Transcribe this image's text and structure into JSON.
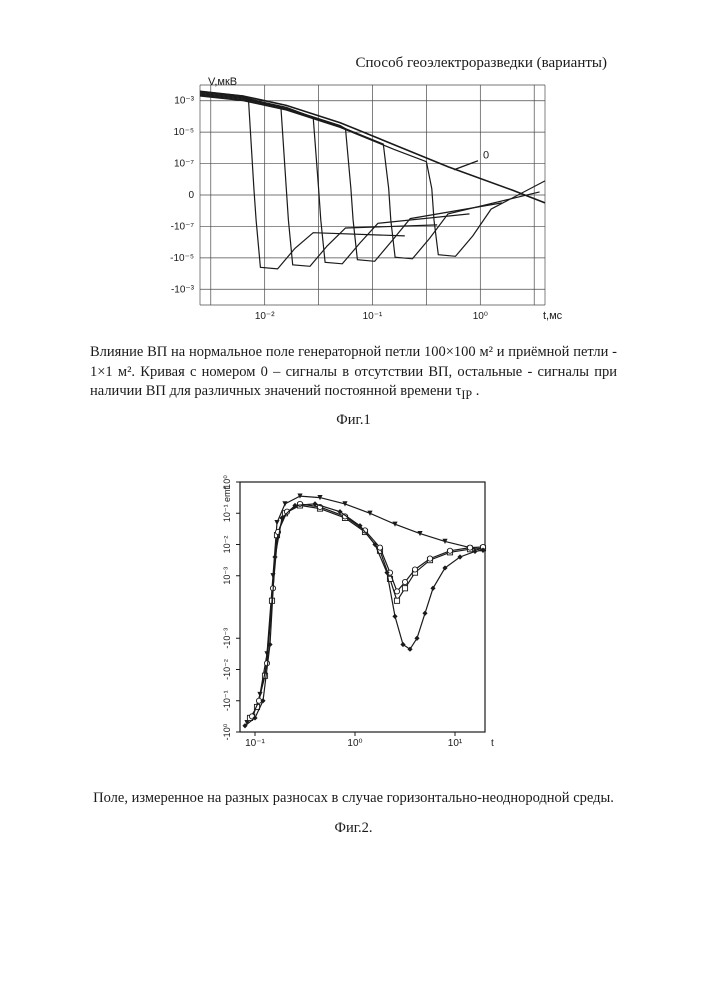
{
  "header": {
    "title": "Способ геоэлектроразведки (варианты)"
  },
  "fig1": {
    "type": "line",
    "ylabel": "V,мкВ",
    "xlabel": "t,мс",
    "annotation_0": "0",
    "y_ticks": [
      "10⁻³",
      "10⁻⁵",
      "10⁻⁷",
      "0",
      "-10⁻⁷",
      "-10⁻⁵",
      "-10⁻³"
    ],
    "x_ticks": [
      "10⁻²",
      "10⁻¹",
      "10⁰"
    ],
    "curve_color": "#1a1a1a",
    "grid_color": "#4a4a4a",
    "background": "#ffffff",
    "xlim_log": [
      -2.6,
      0.6
    ],
    "ylim_signed_log": [
      -3.5,
      3.5
    ],
    "curve0": [
      [
        -2.6,
        3.3
      ],
      [
        -2.2,
        3.15
      ],
      [
        -1.8,
        2.85
      ],
      [
        -1.3,
        2.3
      ],
      [
        -0.8,
        1.6
      ],
      [
        -0.3,
        0.9
      ],
      [
        0.3,
        0.15
      ],
      [
        0.6,
        -0.25
      ]
    ],
    "dip_curves_tau_exp": [
      -2.1,
      -1.8,
      -1.5,
      -1.2,
      -0.85,
      -0.45
    ]
  },
  "caption1": {
    "text_line1": "Влияние ВП на нормальное поле генераторной петли 100×100 м² и приёмной петли - ",
    "text_line2": "1×1 м².  Кривая с номером 0 – сигналы в отсутствии ВП, остальные - сигналы  при",
    "text_line3": "наличии ВП для различных значений постоянной времени τ",
    "subscript": "IP",
    "text_line3b": " ."
  },
  "figlabel1": "Фиг.1",
  "fig2": {
    "type": "line",
    "ylabel": "emf",
    "y_ticks_top": [
      "10⁰",
      "10⁻¹",
      "10⁻²",
      "10⁻³"
    ],
    "y_ticks_bot": [
      "-10⁻³",
      "-10⁻²",
      "-10⁻¹",
      "-10⁰"
    ],
    "x_ticks": [
      "10⁻¹",
      "10⁰",
      "10¹"
    ],
    "xlabel": "t",
    "curve_color": "#1a1a1a",
    "grid_color": "#666666",
    "background": "#ffffff",
    "xlim_log": [
      -1.15,
      1.3
    ],
    "ylim_signed_log": [
      -4,
      4
    ],
    "series": [
      {
        "marker": "triangle-down",
        "pts": [
          [
            -1.08,
            -3.7
          ],
          [
            -1.02,
            -3.5
          ],
          [
            -0.95,
            -2.8
          ],
          [
            -0.88,
            -1.5
          ],
          [
            -0.82,
            1.0
          ],
          [
            -0.78,
            2.7
          ],
          [
            -0.7,
            3.3
          ],
          [
            -0.55,
            3.55
          ],
          [
            -0.35,
            3.5
          ],
          [
            -0.1,
            3.3
          ],
          [
            0.15,
            3.0
          ],
          [
            0.4,
            2.65
          ],
          [
            0.65,
            2.35
          ],
          [
            0.9,
            2.1
          ],
          [
            1.15,
            1.9
          ],
          [
            1.28,
            1.8
          ]
        ]
      },
      {
        "marker": "square-open",
        "pts": [
          [
            -1.05,
            -3.55
          ],
          [
            -0.98,
            -3.2
          ],
          [
            -0.9,
            -2.2
          ],
          [
            -0.83,
            0.2
          ],
          [
            -0.78,
            2.3
          ],
          [
            -0.7,
            3.0
          ],
          [
            -0.55,
            3.25
          ],
          [
            -0.35,
            3.15
          ],
          [
            -0.1,
            2.85
          ],
          [
            0.1,
            2.4
          ],
          [
            0.25,
            1.8
          ],
          [
            0.35,
            0.9
          ],
          [
            0.42,
            0.2
          ],
          [
            0.5,
            0.6
          ],
          [
            0.6,
            1.1
          ],
          [
            0.75,
            1.5
          ],
          [
            0.95,
            1.75
          ],
          [
            1.15,
            1.85
          ],
          [
            1.28,
            1.88
          ]
        ]
      },
      {
        "marker": "circle-open",
        "pts": [
          [
            -1.03,
            -3.5
          ],
          [
            -0.96,
            -3.0
          ],
          [
            -0.88,
            -1.8
          ],
          [
            -0.82,
            0.6
          ],
          [
            -0.77,
            2.4
          ],
          [
            -0.68,
            3.05
          ],
          [
            -0.55,
            3.3
          ],
          [
            -0.35,
            3.2
          ],
          [
            -0.1,
            2.9
          ],
          [
            0.1,
            2.45
          ],
          [
            0.25,
            1.9
          ],
          [
            0.35,
            1.1
          ],
          [
            0.42,
            0.5
          ],
          [
            0.5,
            0.8
          ],
          [
            0.6,
            1.2
          ],
          [
            0.75,
            1.55
          ],
          [
            0.95,
            1.8
          ],
          [
            1.15,
            1.9
          ],
          [
            1.28,
            1.92
          ]
        ]
      },
      {
        "marker": "diamond",
        "pts": [
          [
            -1.1,
            -3.8
          ],
          [
            -1.0,
            -3.55
          ],
          [
            -0.92,
            -3.0
          ],
          [
            -0.85,
            -1.2
          ],
          [
            -0.8,
            1.6
          ],
          [
            -0.73,
            2.85
          ],
          [
            -0.6,
            3.25
          ],
          [
            -0.4,
            3.3
          ],
          [
            -0.15,
            3.05
          ],
          [
            0.05,
            2.6
          ],
          [
            0.2,
            2.0
          ],
          [
            0.32,
            1.1
          ],
          [
            0.4,
            -0.3
          ],
          [
            0.48,
            -1.2
          ],
          [
            0.55,
            -1.35
          ],
          [
            0.62,
            -1.0
          ],
          [
            0.7,
            -0.2
          ],
          [
            0.78,
            0.6
          ],
          [
            0.9,
            1.25
          ],
          [
            1.05,
            1.6
          ],
          [
            1.2,
            1.78
          ],
          [
            1.28,
            1.82
          ]
        ]
      }
    ]
  },
  "caption2": "Поле, измеренное на разных разносах в случае горизонтально-неоднородной среды.",
  "figlabel2": "Фиг.2."
}
